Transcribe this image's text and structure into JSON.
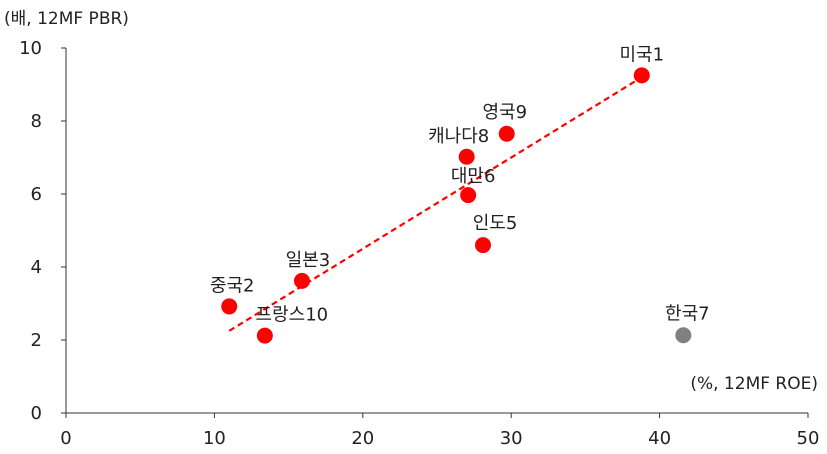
{
  "chart_data": {
    "type": "scatter",
    "title": "",
    "ylabel": "(배, 12MF PBR)",
    "xlabel": "(%, 12MF ROE)",
    "xlim": [
      0,
      50
    ],
    "ylim": [
      0,
      10
    ],
    "xticks": [
      0,
      10,
      20,
      30,
      40,
      50
    ],
    "yticks": [
      0,
      2,
      4,
      6,
      8,
      10
    ],
    "grid": false,
    "colors": {
      "highlight": "#ff0000",
      "other": "#808080",
      "trend": "#ff0000"
    },
    "points": [
      {
        "label": "미국1",
        "x": 38.8,
        "y": 9.25,
        "color": "#ff0000"
      },
      {
        "label": "중국2",
        "x": 11.0,
        "y": 2.92,
        "color": "#ff0000"
      },
      {
        "label": "일본3",
        "x": 15.9,
        "y": 3.62,
        "color": "#ff0000"
      },
      {
        "label": "인도5",
        "x": 28.1,
        "y": 4.6,
        "color": "#ff0000"
      },
      {
        "label": "대만6",
        "x": 27.1,
        "y": 5.97,
        "color": "#ff0000"
      },
      {
        "label": "한국7",
        "x": 41.6,
        "y": 2.13,
        "color": "#808080"
      },
      {
        "label": "캐나다8",
        "x": 27.0,
        "y": 7.02,
        "color": "#ff0000"
      },
      {
        "label": "영국9",
        "x": 29.7,
        "y": 7.65,
        "color": "#ff0000"
      },
      {
        "label": "프랑스10",
        "x": 13.4,
        "y": 2.12,
        "color": "#ff0000"
      }
    ],
    "trendline": {
      "x": [
        11.0,
        38.8
      ],
      "y": [
        2.25,
        9.2
      ]
    }
  }
}
